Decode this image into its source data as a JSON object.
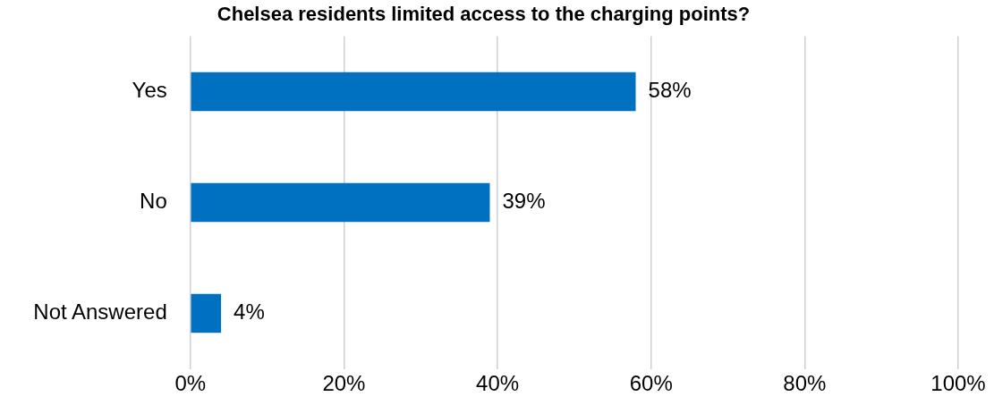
{
  "chart_data": {
    "type": "bar",
    "orientation": "horizontal",
    "title": "Chelsea residents limited access to the charging points?",
    "categories": [
      "Yes",
      "No",
      "Not Answered"
    ],
    "values": [
      58,
      39,
      4
    ],
    "color": "#0070c0",
    "value_labels": [
      "58%",
      "39%",
      "4%"
    ],
    "xlim": [
      0,
      100
    ],
    "xticks": [
      {
        "value": 0,
        "label": "0%"
      },
      {
        "value": 20,
        "label": "20%"
      },
      {
        "value": 40,
        "label": "40%"
      },
      {
        "value": 60,
        "label": "60%"
      },
      {
        "value": 80,
        "label": "80%"
      },
      {
        "value": 100,
        "label": "100%"
      }
    ],
    "grid": "x",
    "legend": false
  }
}
